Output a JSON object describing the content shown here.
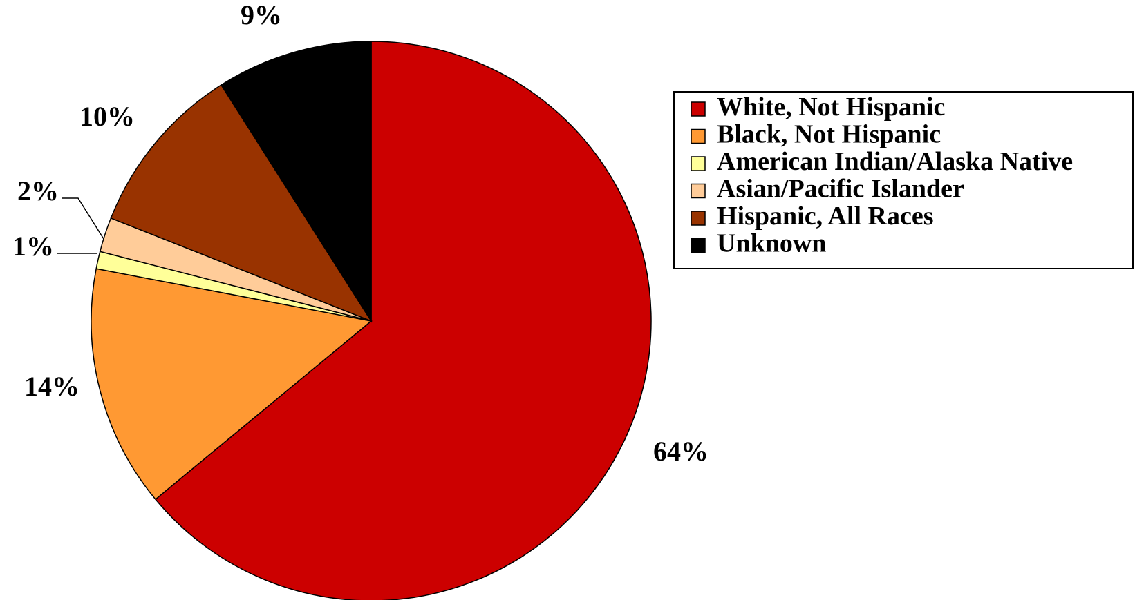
{
  "chart_data": {
    "type": "pie",
    "title": "",
    "legend_position": "right",
    "categories": [
      "White, Not Hispanic",
      "Black, Not Hispanic",
      "American Indian/Alaska Native",
      "Asian/Pacific Islander",
      "Hispanic, All Races",
      "Unknown"
    ],
    "values": [
      64,
      14,
      1,
      2,
      10,
      9
    ],
    "labels": [
      "64%",
      "14%",
      "1%",
      "2%",
      "10%",
      "9%"
    ],
    "colors": [
      "#cc0000",
      "#ff9933",
      "#ffff99",
      "#ffcc99",
      "#993300",
      "#000000"
    ]
  }
}
